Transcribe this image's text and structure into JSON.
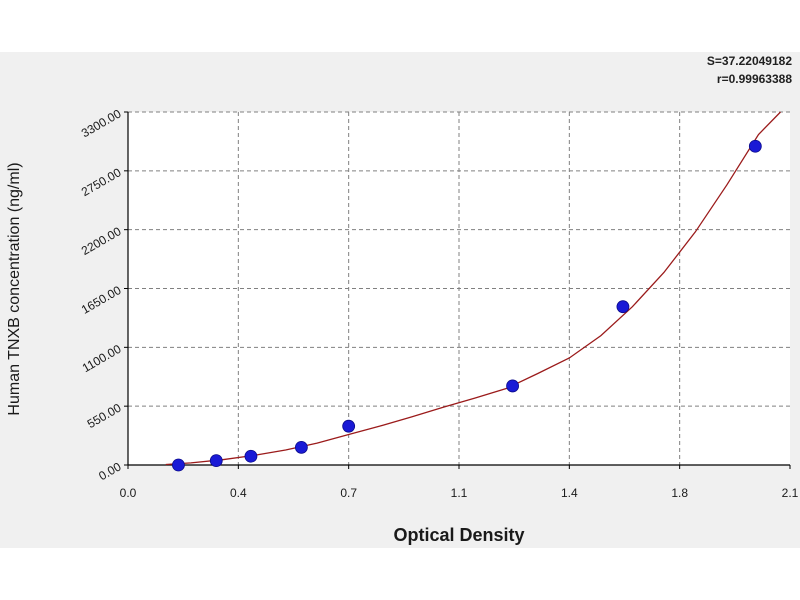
{
  "stats": {
    "s_text": "S=37.22049182",
    "r_text": "r=0.99963388"
  },
  "chart_data": {
    "type": "scatter",
    "xlabel": "Optical Density",
    "ylabel": "Human TNXB concentration (ng/ml)",
    "xlim": [
      0,
      2.1
    ],
    "ylim": [
      0,
      3300
    ],
    "x_ticks": [
      "0.0",
      "0.4",
      "0.7",
      "1.1",
      "1.4",
      "1.8",
      "2.1"
    ],
    "y_ticks": [
      "0.00",
      "550.00",
      "1100.00",
      "1650.00",
      "2200.00",
      "2750.00",
      "3300.00"
    ],
    "grid": true,
    "series": [
      {
        "x": [
          0.16,
          0.28,
          0.39,
          0.55,
          0.7,
          1.22,
          1.57,
          1.99
        ],
        "y": [
          0,
          41,
          82,
          165,
          363,
          739,
          1480,
          2980
        ]
      }
    ],
    "fit_curve": {
      "x": [
        0.12,
        0.2,
        0.3,
        0.4,
        0.5,
        0.6,
        0.7,
        0.8,
        0.9,
        1.0,
        1.1,
        1.2,
        1.3,
        1.4,
        1.5,
        1.6,
        1.7,
        1.8,
        1.9,
        2.0,
        2.07
      ],
      "y": [
        5,
        20,
        50,
        90,
        140,
        205,
        285,
        365,
        450,
        540,
        625,
        715,
        855,
        1000,
        1210,
        1480,
        1800,
        2180,
        2620,
        3090,
        3300
      ]
    },
    "colors": {
      "points": "#1a1ad6",
      "curve": "#9b1b1b",
      "grid": "#808080",
      "background": "#f0f0f0",
      "plot": "#ffffff"
    }
  }
}
